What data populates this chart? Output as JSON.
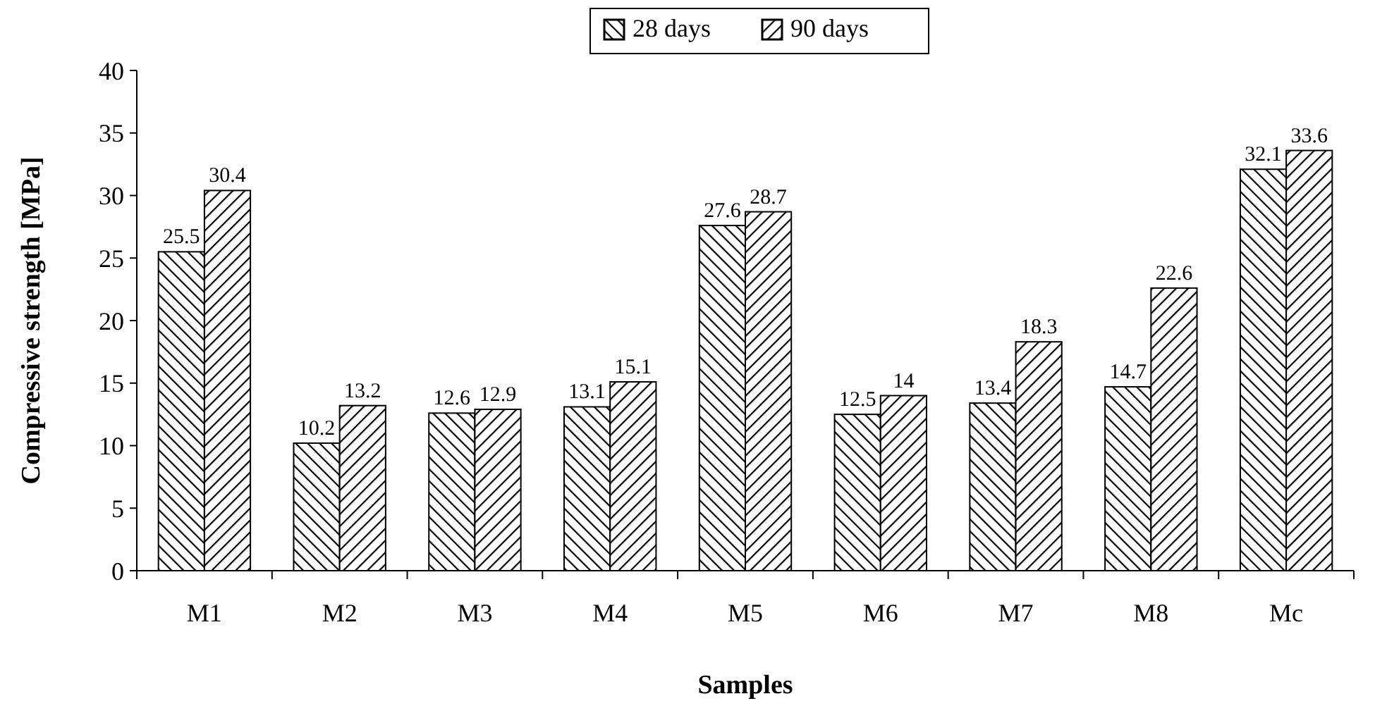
{
  "chart_data": {
    "type": "bar",
    "xlabel": "Samples",
    "ylabel": "Compressive strength [MPa]",
    "categories": [
      "M1",
      "M2",
      "M3",
      "M4",
      "M5",
      "M6",
      "M7",
      "M8",
      "Mc"
    ],
    "series": [
      {
        "name": "28 days",
        "color": "#000000",
        "values": [
          25.5,
          10.2,
          12.6,
          13.1,
          27.6,
          12.5,
          13.4,
          14.7,
          32.1
        ]
      },
      {
        "name": "90 days",
        "color": "#000000",
        "values": [
          30.4,
          13.2,
          12.9,
          15.1,
          28.7,
          14,
          18.3,
          22.6,
          33.6
        ]
      }
    ],
    "ylim": [
      0,
      40
    ],
    "yticks": [
      0,
      5,
      10,
      15,
      20,
      25,
      30,
      35,
      40
    ],
    "data_labels": true,
    "legend": "top",
    "grid": false
  }
}
